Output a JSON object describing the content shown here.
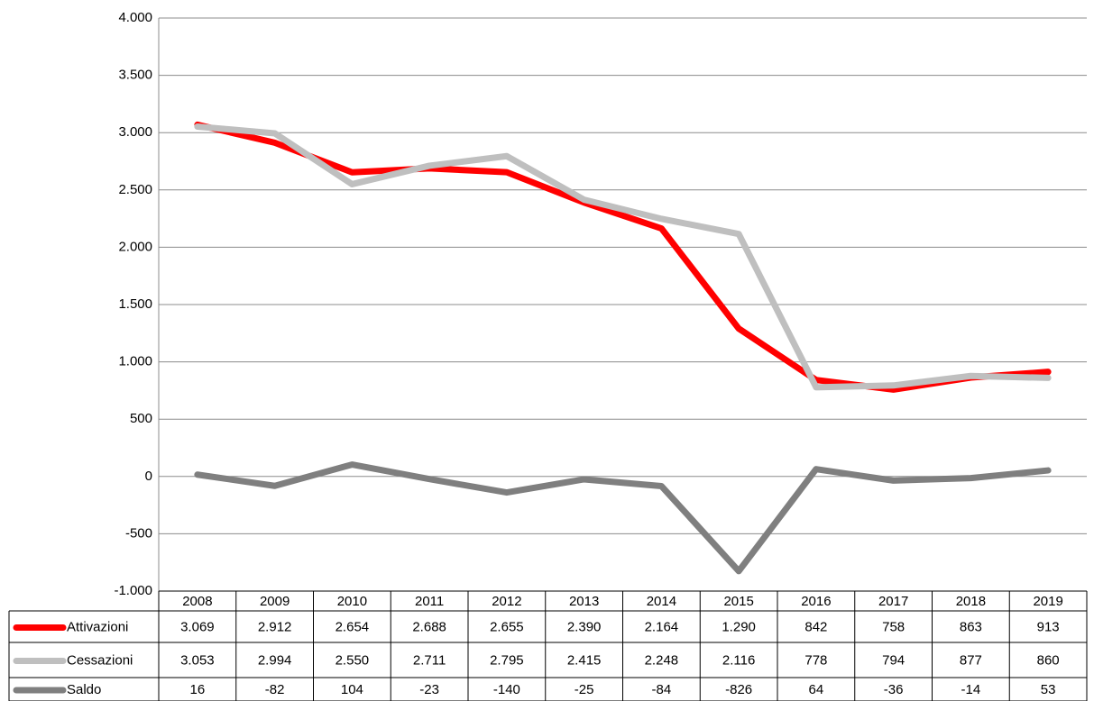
{
  "chart_data": {
    "type": "line",
    "categories": [
      "2008",
      "2009",
      "2010",
      "2011",
      "2012",
      "2013",
      "2014",
      "2015",
      "2016",
      "2017",
      "2018",
      "2019"
    ],
    "series": [
      {
        "name": "Attivazioni",
        "color": "#ff0000",
        "values": [
          3069,
          2912,
          2654,
          2688,
          2655,
          2390,
          2164,
          1290,
          842,
          758,
          863,
          913
        ],
        "value_labels": [
          "3.069",
          "2.912",
          "2.654",
          "2.688",
          "2.655",
          "2.390",
          "2.164",
          "1.290",
          "842",
          "758",
          "863",
          "913"
        ]
      },
      {
        "name": "Cessazioni",
        "color": "#bfbfbf",
        "values": [
          3053,
          2994,
          2550,
          2711,
          2795,
          2415,
          2248,
          2116,
          778,
          794,
          877,
          860
        ],
        "value_labels": [
          "3.053",
          "2.994",
          "2.550",
          "2.711",
          "2.795",
          "2.415",
          "2.248",
          "2.116",
          "778",
          "794",
          "877",
          "860"
        ]
      },
      {
        "name": "Saldo",
        "color": "#7f7f7f",
        "values": [
          16,
          -82,
          104,
          -23,
          -140,
          -25,
          -84,
          -826,
          64,
          -36,
          -14,
          53
        ],
        "value_labels": [
          "16",
          "-82",
          "104",
          "-23",
          "-140",
          "-25",
          "-84",
          "-826",
          "64",
          "-36",
          "-14",
          "53"
        ]
      }
    ],
    "ylim": [
      -1000,
      4000
    ],
    "yticks": [
      {
        "value": -1000,
        "label": "-1.000"
      },
      -500,
      0,
      500,
      {
        "value": 1000,
        "label": "1.000"
      },
      {
        "value": 1500,
        "label": "1.500"
      },
      {
        "value": 2000,
        "label": "2.000"
      },
      {
        "value": 2500,
        "label": "2.500"
      },
      {
        "value": 3000,
        "label": "3.000"
      },
      {
        "value": 3500,
        "label": "3.500"
      },
      {
        "value": 4000,
        "label": "4.000"
      }
    ],
    "grid": true
  }
}
